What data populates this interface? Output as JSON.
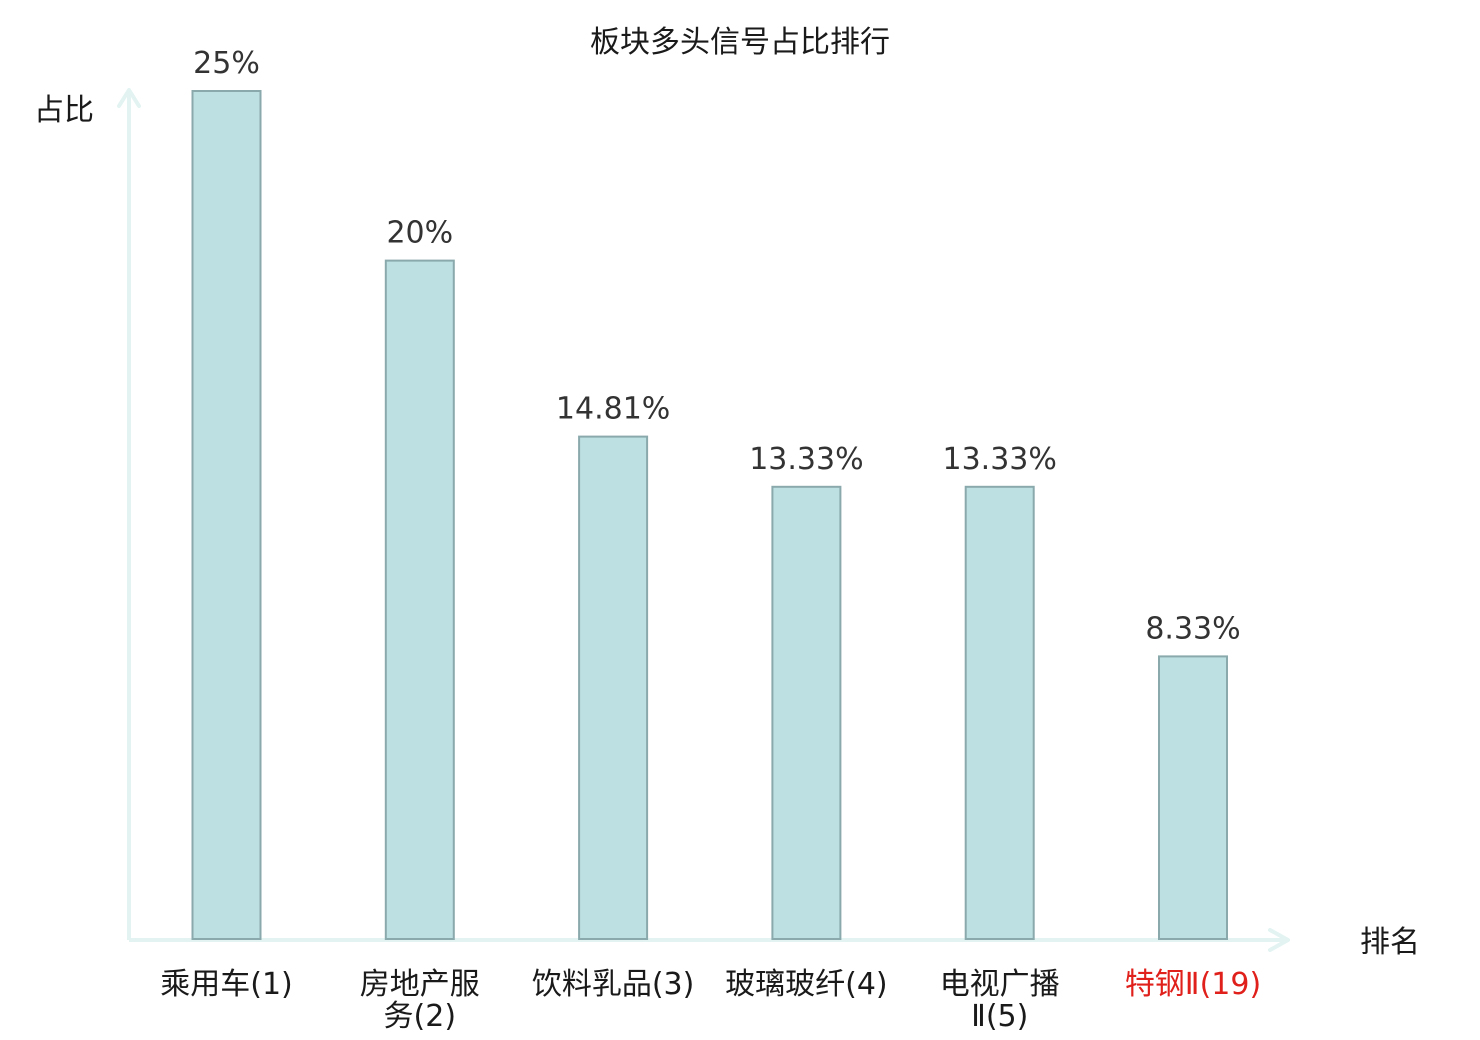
{
  "chart_data": {
    "type": "bar",
    "title": "板块多头信号占比排行",
    "ylabel": "占比",
    "xlabel": "排名",
    "categories": [
      {
        "lines": [
          "乘用车(1)"
        ],
        "highlight": false
      },
      {
        "lines": [
          "房地产服",
          "务(2)"
        ],
        "highlight": false
      },
      {
        "lines": [
          "饮料乳品(3)"
        ],
        "highlight": false
      },
      {
        "lines": [
          "玻璃玻纤(4)"
        ],
        "highlight": false
      },
      {
        "lines": [
          "电视广播",
          "Ⅱ(5)"
        ],
        "highlight": false
      },
      {
        "lines": [
          "特钢Ⅱ(19)"
        ],
        "highlight": true
      }
    ],
    "values": [
      25,
      20,
      14.81,
      13.33,
      13.33,
      8.33
    ],
    "value_labels": [
      "25%",
      "20%",
      "14.81%",
      "13.33%",
      "13.33%",
      "8.33%"
    ],
    "ylim": [
      0,
      25
    ],
    "grid": false,
    "legend": "none",
    "colors": {
      "bar_fill": "#bde0e3",
      "bar_stroke": "#8aa9ac",
      "axis": "#e2f3f1",
      "text": "#1a1a1a",
      "value_text": "#333333",
      "highlight_text": "#e0201b"
    }
  }
}
